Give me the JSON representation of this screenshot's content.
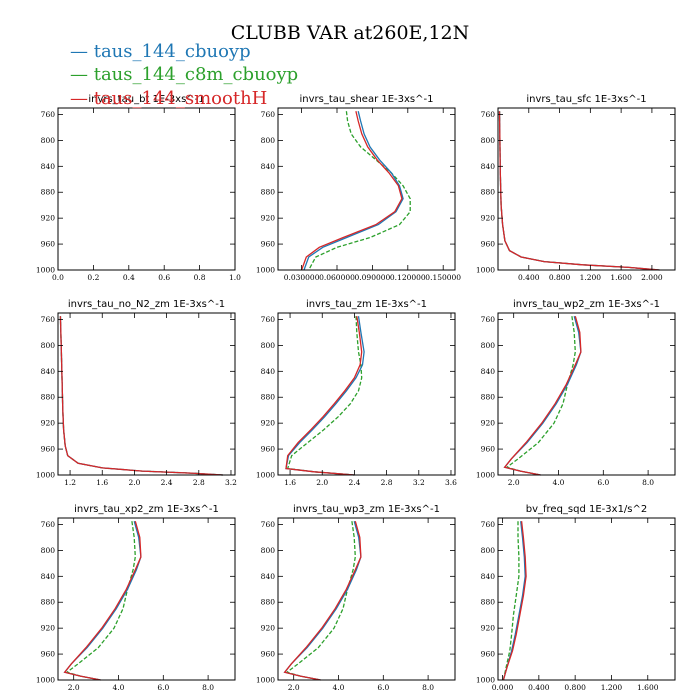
{
  "title": "CLUBB VAR at260E,12N",
  "legend": [
    {
      "label": "taus_144_cbuoyp",
      "color": "#1f77b4"
    },
    {
      "label": "taus_144_c8m_cbuoyp",
      "color": "#2ca02c"
    },
    {
      "label": "taus_144_smoothH",
      "color": "#d62728"
    }
  ],
  "chart_data": [
    {
      "type": "line",
      "title": "invrs_tau_bt",
      "units": "1E-3xs^-1",
      "title_full": "invrs_tau_bt   1E-3xs^-1",
      "ylim": [
        1000,
        750
      ],
      "yticks": [
        760,
        800,
        840,
        880,
        920,
        960,
        1000
      ],
      "xlim": [
        0,
        1
      ],
      "xticks": [
        "0.0",
        "0.2",
        "0.4",
        "0.6",
        "0.8",
        "1.0"
      ],
      "xtick_values": [
        0,
        0.2,
        0.4,
        0.6,
        0.8,
        1.0
      ],
      "series": []
    },
    {
      "type": "line",
      "title": "invrs_tau_shear",
      "units": "1E-3xs^-1",
      "title_full": "invrs_tau_shear   1E-3xs^-1",
      "ylim": [
        1000,
        750
      ],
      "yticks": [
        760,
        800,
        840,
        880,
        920,
        960,
        1000
      ],
      "xlim": [
        0.01,
        0.16
      ],
      "xticks": [
        "0.030000",
        "0.060000",
        "0.090000",
        "0.120000",
        "0.150000"
      ],
      "xtick_values": [
        0.03,
        0.06,
        0.09,
        0.12,
        0.15
      ],
      "series": [
        {
          "name": "taus_144_cbuoyp",
          "x": [
            0.078,
            0.08,
            0.083,
            0.088,
            0.096,
            0.106,
            0.113,
            0.116,
            0.11,
            0.095,
            0.068,
            0.048,
            0.036,
            0.032
          ],
          "y": [
            755,
            770,
            790,
            810,
            830,
            850,
            870,
            890,
            910,
            930,
            950,
            965,
            980,
            1000
          ]
        },
        {
          "name": "taus_144_c8m_cbuoyp",
          "x": [
            0.068,
            0.069,
            0.072,
            0.08,
            0.093,
            0.106,
            0.116,
            0.122,
            0.122,
            0.113,
            0.088,
            0.06,
            0.042,
            0.036
          ],
          "y": [
            755,
            770,
            790,
            810,
            830,
            850,
            870,
            890,
            910,
            930,
            950,
            965,
            980,
            1000
          ]
        },
        {
          "name": "taus_144_smoothH",
          "x": [
            0.076,
            0.078,
            0.081,
            0.086,
            0.094,
            0.104,
            0.112,
            0.115,
            0.109,
            0.093,
            0.065,
            0.045,
            0.034,
            0.03
          ],
          "y": [
            755,
            770,
            790,
            810,
            830,
            850,
            870,
            890,
            910,
            930,
            950,
            965,
            980,
            1000
          ]
        }
      ]
    },
    {
      "type": "line",
      "title": "invrs_tau_sfc",
      "units": "1E-3xs^-1",
      "title_full": "invrs_tau_sfc   1E-3xs^-1",
      "ylim": [
        1000,
        750
      ],
      "yticks": [
        760,
        800,
        840,
        880,
        920,
        960,
        1000
      ],
      "xlim": [
        0,
        2.3
      ],
      "xticks": [
        "0.400",
        "0.800",
        "1.200",
        "1.600",
        "2.000"
      ],
      "xtick_values": [
        0.4,
        0.8,
        1.2,
        1.6,
        2.0
      ],
      "series": [
        {
          "name": "taus_144_cbuoyp",
          "x": [
            0.02,
            0.025,
            0.03,
            0.04,
            0.06,
            0.09,
            0.15,
            0.3,
            0.6,
            1.1,
            1.7,
            2.1
          ],
          "y": [
            755,
            800,
            850,
            900,
            930,
            955,
            970,
            980,
            987,
            992,
            996,
            1000
          ]
        },
        {
          "name": "taus_144_c8m_cbuoyp",
          "x": [
            0.02,
            0.025,
            0.03,
            0.04,
            0.06,
            0.09,
            0.15,
            0.3,
            0.6,
            1.1,
            1.7,
            2.1
          ],
          "y": [
            755,
            800,
            850,
            900,
            930,
            955,
            970,
            980,
            987,
            992,
            996,
            1000
          ]
        },
        {
          "name": "taus_144_smoothH",
          "x": [
            0.02,
            0.025,
            0.03,
            0.04,
            0.06,
            0.09,
            0.15,
            0.3,
            0.6,
            1.1,
            1.7,
            2.1
          ],
          "y": [
            755,
            800,
            850,
            900,
            930,
            955,
            970,
            980,
            987,
            992,
            996,
            1000
          ]
        }
      ]
    },
    {
      "type": "line",
      "title": "invrs_tau_no_N2_zm",
      "units": "1E-3xs^-1",
      "title_full": "invrs_tau_no_N2_zm   1E-3xs^-1",
      "ylim": [
        1000,
        750
      ],
      "yticks": [
        760,
        800,
        840,
        880,
        920,
        960,
        1000
      ],
      "xlim": [
        1.05,
        3.25
      ],
      "xticks": [
        "1.2",
        "1.6",
        "2.0",
        "2.4",
        "2.8",
        "3.2"
      ],
      "xtick_values": [
        1.2,
        1.6,
        2.0,
        2.4,
        2.8,
        3.2
      ],
      "series": [
        {
          "name": "taus_144_cbuoyp",
          "x": [
            1.08,
            1.09,
            1.1,
            1.11,
            1.12,
            1.14,
            1.17,
            1.3,
            1.6,
            2.1,
            2.7,
            3.1
          ],
          "y": [
            755,
            800,
            850,
            900,
            930,
            955,
            970,
            982,
            989,
            994,
            997,
            1000
          ]
        },
        {
          "name": "taus_144_c8m_cbuoyp",
          "x": [
            1.08,
            1.09,
            1.1,
            1.11,
            1.12,
            1.14,
            1.17,
            1.3,
            1.6,
            2.1,
            2.7,
            3.1
          ],
          "y": [
            755,
            800,
            850,
            900,
            930,
            955,
            970,
            982,
            989,
            994,
            997,
            1000
          ]
        },
        {
          "name": "taus_144_smoothH",
          "x": [
            1.08,
            1.09,
            1.1,
            1.11,
            1.12,
            1.14,
            1.17,
            1.3,
            1.6,
            2.1,
            2.7,
            3.1
          ],
          "y": [
            755,
            800,
            850,
            900,
            930,
            955,
            970,
            982,
            989,
            994,
            997,
            1000
          ]
        }
      ]
    },
    {
      "type": "line",
      "title": "invrs_tau_zm",
      "units": "1E-3xs^-1",
      "title_full": "invrs_tau_zm   1E-3xs^-1",
      "ylim": [
        1000,
        750
      ],
      "yticks": [
        760,
        800,
        840,
        880,
        920,
        960,
        1000
      ],
      "xlim": [
        1.45,
        3.65
      ],
      "xticks": [
        "1.6",
        "2.0",
        "2.4",
        "2.8",
        "3.2",
        "3.6"
      ],
      "xtick_values": [
        1.6,
        2.0,
        2.4,
        2.8,
        3.2,
        3.6
      ],
      "series": [
        {
          "name": "taus_144_cbuoyp",
          "x": [
            2.45,
            2.48,
            2.52,
            2.5,
            2.42,
            2.3,
            2.17,
            2.03,
            1.88,
            1.72,
            1.58,
            1.55,
            1.9,
            2.4
          ],
          "y": [
            755,
            780,
            810,
            830,
            850,
            870,
            890,
            910,
            930,
            950,
            970,
            990,
            995,
            1000
          ]
        },
        {
          "name": "taus_144_c8m_cbuoyp",
          "x": [
            2.42,
            2.43,
            2.45,
            2.48,
            2.49,
            2.45,
            2.35,
            2.2,
            2.02,
            1.82,
            1.62,
            1.57,
            1.9,
            2.4
          ],
          "y": [
            755,
            780,
            810,
            830,
            850,
            870,
            890,
            910,
            930,
            950,
            970,
            990,
            995,
            1000
          ]
        },
        {
          "name": "taus_144_smoothH",
          "x": [
            2.43,
            2.46,
            2.49,
            2.47,
            2.4,
            2.28,
            2.15,
            2.01,
            1.86,
            1.7,
            1.57,
            1.55,
            1.9,
            2.4
          ],
          "y": [
            755,
            780,
            810,
            830,
            850,
            870,
            890,
            910,
            930,
            950,
            970,
            990,
            995,
            1000
          ]
        }
      ]
    },
    {
      "type": "line",
      "title": "invrs_tau_wp2_zm",
      "units": "1E-3xs^-1",
      "title_full": "invrs_tau_wp2_zm   1E-3xs^-1",
      "ylim": [
        1000,
        750
      ],
      "yticks": [
        760,
        800,
        840,
        880,
        920,
        960,
        1000
      ],
      "xlim": [
        1.3,
        9.2
      ],
      "xticks": [
        "2.0",
        "4.0",
        "6.0",
        "8.0"
      ],
      "xtick_values": [
        2,
        4,
        6,
        8
      ],
      "series": [
        {
          "name": "taus_144_cbuoyp",
          "x": [
            4.7,
            4.9,
            5.0,
            4.8,
            4.4,
            3.9,
            3.3,
            2.6,
            1.9,
            1.6,
            2.3,
            3.2
          ],
          "y": [
            755,
            780,
            810,
            830,
            860,
            890,
            920,
            950,
            975,
            988,
            994,
            1000
          ]
        },
        {
          "name": "taus_144_c8m_cbuoyp",
          "x": [
            4.6,
            4.7,
            4.75,
            4.65,
            4.4,
            4.2,
            3.8,
            3.1,
            2.2,
            1.7,
            2.3,
            3.2
          ],
          "y": [
            755,
            780,
            810,
            830,
            860,
            890,
            920,
            950,
            975,
            988,
            994,
            1000
          ]
        },
        {
          "name": "taus_144_smoothH",
          "x": [
            4.75,
            4.95,
            5.0,
            4.75,
            4.35,
            3.85,
            3.25,
            2.55,
            1.9,
            1.6,
            2.3,
            3.2
          ],
          "y": [
            755,
            780,
            810,
            830,
            860,
            890,
            920,
            950,
            975,
            988,
            994,
            1000
          ]
        }
      ]
    },
    {
      "type": "line",
      "title": "invrs_tau_xp2_zm",
      "units": "1E-3xs^-1",
      "title_full": "invrs_tau_xp2_zm   1E-3xs^-1",
      "ylim": [
        1000,
        750
      ],
      "yticks": [
        760,
        800,
        840,
        880,
        920,
        960,
        1000
      ],
      "xlim": [
        1.3,
        9.2
      ],
      "xticks": [
        "2.0",
        "4.0",
        "6.0",
        "8.0"
      ],
      "xtick_values": [
        2,
        4,
        6,
        8
      ],
      "series": [
        {
          "name": "taus_144_cbuoyp",
          "x": [
            4.7,
            4.9,
            5.0,
            4.8,
            4.4,
            3.9,
            3.3,
            2.6,
            1.9,
            1.6,
            2.3,
            3.2
          ],
          "y": [
            755,
            780,
            810,
            830,
            860,
            890,
            920,
            950,
            975,
            988,
            994,
            1000
          ]
        },
        {
          "name": "taus_144_c8m_cbuoyp",
          "x": [
            4.6,
            4.7,
            4.75,
            4.65,
            4.4,
            4.2,
            3.8,
            3.1,
            2.2,
            1.7,
            2.3,
            3.2
          ],
          "y": [
            755,
            780,
            810,
            830,
            860,
            890,
            920,
            950,
            975,
            988,
            994,
            1000
          ]
        },
        {
          "name": "taus_144_smoothH",
          "x": [
            4.75,
            4.95,
            5.0,
            4.75,
            4.35,
            3.85,
            3.25,
            2.55,
            1.9,
            1.6,
            2.3,
            3.2
          ],
          "y": [
            755,
            780,
            810,
            830,
            860,
            890,
            920,
            950,
            975,
            988,
            994,
            1000
          ]
        }
      ]
    },
    {
      "type": "line",
      "title": "invrs_tau_wp3_zm",
      "units": "1E-3xs^-1",
      "title_full": "invrs_tau_wp3_zm   1E-3xs^-1",
      "ylim": [
        1000,
        750
      ],
      "yticks": [
        760,
        800,
        840,
        880,
        920,
        960,
        1000
      ],
      "xlim": [
        1.3,
        9.2
      ],
      "xticks": [
        "2.0",
        "4.0",
        "6.0",
        "8.0"
      ],
      "xtick_values": [
        2,
        4,
        6,
        8
      ],
      "series": [
        {
          "name": "taus_144_cbuoyp",
          "x": [
            4.7,
            4.9,
            5.0,
            4.8,
            4.4,
            3.9,
            3.3,
            2.6,
            1.9,
            1.6,
            2.3,
            3.2
          ],
          "y": [
            755,
            780,
            810,
            830,
            860,
            890,
            920,
            950,
            975,
            988,
            994,
            1000
          ]
        },
        {
          "name": "taus_144_c8m_cbuoyp",
          "x": [
            4.6,
            4.7,
            4.75,
            4.65,
            4.4,
            4.2,
            3.8,
            3.1,
            2.2,
            1.7,
            2.3,
            3.2
          ],
          "y": [
            755,
            780,
            810,
            830,
            860,
            890,
            920,
            950,
            975,
            988,
            994,
            1000
          ]
        },
        {
          "name": "taus_144_smoothH",
          "x": [
            4.75,
            4.95,
            5.0,
            4.75,
            4.35,
            3.85,
            3.25,
            2.55,
            1.9,
            1.6,
            2.3,
            3.2
          ],
          "y": [
            755,
            780,
            810,
            830,
            860,
            890,
            920,
            950,
            975,
            988,
            994,
            1000
          ]
        }
      ]
    },
    {
      "type": "line",
      "title": "bv_freq_sqd",
      "units": "1E-3x1/s^2",
      "title_full": "bv_freq_sqd   1E-3x1/s^2",
      "ylim": [
        1000,
        750
      ],
      "yticks": [
        760,
        800,
        840,
        880,
        920,
        960,
        1000
      ],
      "xlim": [
        -0.05,
        1.9
      ],
      "xticks": [
        "0.000",
        "0.400",
        "0.800",
        "1.200",
        "1.600"
      ],
      "xtick_values": [
        0,
        0.4,
        0.8,
        1.2,
        1.6
      ],
      "series": [
        {
          "name": "taus_144_cbuoyp",
          "x": [
            0.2,
            0.22,
            0.24,
            0.25,
            0.22,
            0.18,
            0.14,
            0.1,
            0.05,
            0.01
          ],
          "y": [
            755,
            780,
            810,
            840,
            870,
            900,
            930,
            955,
            980,
            1000
          ]
        },
        {
          "name": "taus_144_c8m_cbuoyp",
          "x": [
            0.17,
            0.17,
            0.18,
            0.18,
            0.15,
            0.12,
            0.1,
            0.08,
            0.04,
            0.01
          ],
          "y": [
            755,
            780,
            810,
            840,
            870,
            900,
            930,
            955,
            980,
            1000
          ]
        },
        {
          "name": "taus_144_smoothH",
          "x": [
            0.21,
            0.23,
            0.25,
            0.26,
            0.23,
            0.19,
            0.15,
            0.11,
            0.05,
            0.01
          ],
          "y": [
            755,
            780,
            810,
            840,
            870,
            900,
            930,
            955,
            980,
            1000
          ]
        }
      ]
    }
  ]
}
